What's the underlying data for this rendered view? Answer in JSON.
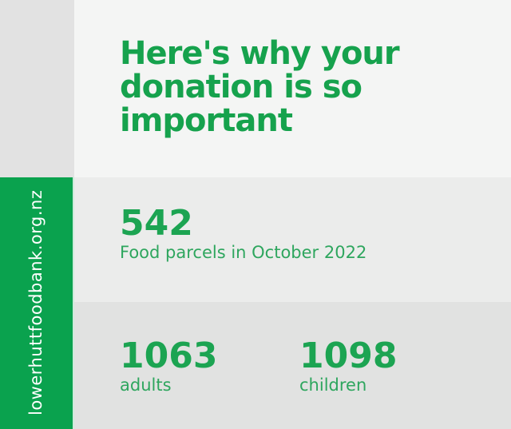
{
  "sidebar": {
    "website": "lowerhuttfoodbank.org.nz"
  },
  "headline": "Here's why your donation is so important",
  "stats": {
    "parcels": {
      "value": "542",
      "label": "Food parcels in October 2022"
    },
    "adults": {
      "value": "1063",
      "label": "adults"
    },
    "children": {
      "value": "1098",
      "label": "children"
    }
  },
  "colors": {
    "green_bar": "#0aa24e",
    "headline_green": "#16a24d",
    "number_green": "#1ca452",
    "label_green": "#2ea65e",
    "band_top": "#f4f5f4",
    "band_mid": "#ebeceb",
    "band_bottom": "#e1e2e1",
    "corner_block": "#e2e2e2",
    "sidebar_text": "#ffffff"
  }
}
